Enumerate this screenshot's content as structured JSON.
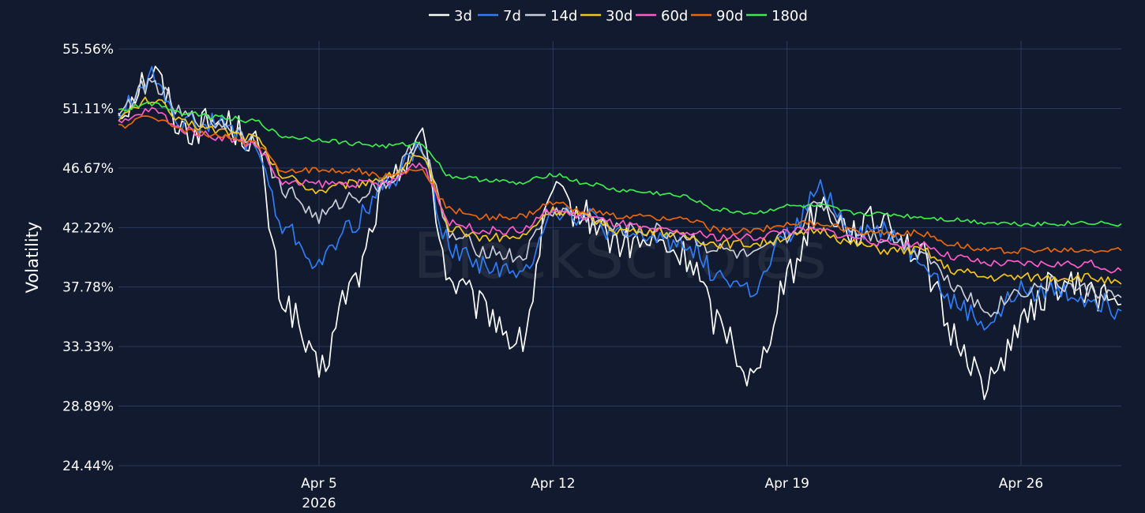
{
  "chart_data": {
    "type": "line",
    "watermark": "BlockScholes",
    "ylabel": "Volatility",
    "ylim": [
      24.44,
      55.56
    ],
    "yticks": [
      "55.56%",
      "51.11%",
      "46.67%",
      "42.22%",
      "37.78%",
      "33.33%",
      "28.89%",
      "24.44%"
    ],
    "ytick_values": [
      55.56,
      51.11,
      46.67,
      42.22,
      37.78,
      33.33,
      28.89,
      24.44
    ],
    "x_range": [
      "2026-03-30",
      "2026-04-29"
    ],
    "xticks": [
      {
        "date": "2026-04-05",
        "label": "Apr 5",
        "sublabel": "2026"
      },
      {
        "date": "2026-04-12",
        "label": "Apr 12",
        "sublabel": ""
      },
      {
        "date": "2026-04-19",
        "label": "Apr 19",
        "sublabel": ""
      },
      {
        "date": "2026-04-26",
        "label": "Apr 26",
        "sublabel": ""
      }
    ],
    "grid": true,
    "legend": "top-center",
    "series": [
      {
        "name": "3d",
        "color": "#ffffff",
        "x": [
          "2026-03-30",
          "2026-03-31",
          "2026-04-01",
          "2026-04-02",
          "2026-04-03",
          "2026-04-04",
          "2026-04-05",
          "2026-04-06",
          "2026-04-07",
          "2026-04-08",
          "2026-04-09",
          "2026-04-10",
          "2026-04-11",
          "2026-04-12",
          "2026-04-13",
          "2026-04-14",
          "2026-04-15",
          "2026-04-16",
          "2026-04-17",
          "2026-04-18",
          "2026-04-19",
          "2026-04-20",
          "2026-04-21",
          "2026-04-22",
          "2026-04-23",
          "2026-04-24",
          "2026-04-25",
          "2026-04-26",
          "2026-04-27",
          "2026-04-28",
          "2026-04-29"
        ],
        "values": [
          51.0,
          53.8,
          49.5,
          50.2,
          49.0,
          36.5,
          31.5,
          38.0,
          45.0,
          49.0,
          38.0,
          36.0,
          33.5,
          44.5,
          43.0,
          41.0,
          41.0,
          40.0,
          35.0,
          31.0,
          38.5,
          44.0,
          42.0,
          43.0,
          40.0,
          34.0,
          30.5,
          35.0,
          38.0,
          37.5,
          36.5
        ]
      },
      {
        "name": "7d",
        "color": "#2f7cf6",
        "x": [
          "2026-03-30",
          "2026-03-31",
          "2026-04-01",
          "2026-04-02",
          "2026-04-03",
          "2026-04-04",
          "2026-04-05",
          "2026-04-06",
          "2026-04-07",
          "2026-04-08",
          "2026-04-09",
          "2026-04-10",
          "2026-04-11",
          "2026-04-12",
          "2026-04-13",
          "2026-04-14",
          "2026-04-15",
          "2026-04-16",
          "2026-04-17",
          "2026-04-18",
          "2026-04-19",
          "2026-04-20",
          "2026-04-21",
          "2026-04-22",
          "2026-04-23",
          "2026-04-24",
          "2026-04-25",
          "2026-04-26",
          "2026-04-27",
          "2026-04-28",
          "2026-04-29"
        ],
        "values": [
          50.8,
          53.5,
          50.0,
          50.0,
          48.5,
          42.0,
          39.5,
          42.5,
          45.5,
          48.0,
          40.5,
          39.5,
          38.5,
          43.5,
          43.0,
          41.5,
          41.5,
          41.0,
          38.5,
          37.5,
          41.5,
          45.0,
          42.0,
          42.0,
          40.0,
          36.5,
          35.0,
          37.5,
          37.5,
          37.0,
          36.0
        ]
      },
      {
        "name": "14d",
        "color": "#c8ccd6",
        "x": [
          "2026-03-30",
          "2026-03-31",
          "2026-04-01",
          "2026-04-02",
          "2026-04-03",
          "2026-04-04",
          "2026-04-05",
          "2026-04-06",
          "2026-04-07",
          "2026-04-08",
          "2026-04-09",
          "2026-04-10",
          "2026-04-11",
          "2026-04-12",
          "2026-04-13",
          "2026-04-14",
          "2026-04-15",
          "2026-04-16",
          "2026-04-17",
          "2026-04-18",
          "2026-04-19",
          "2026-04-20",
          "2026-04-21",
          "2026-04-22",
          "2026-04-23",
          "2026-04-24",
          "2026-04-25",
          "2026-04-26",
          "2026-04-27",
          "2026-04-28",
          "2026-04-29"
        ],
        "values": [
          51.0,
          53.0,
          50.5,
          50.0,
          49.0,
          45.0,
          43.0,
          44.5,
          45.5,
          48.5,
          41.5,
          40.5,
          40.0,
          43.5,
          43.0,
          42.0,
          42.0,
          41.5,
          40.5,
          40.0,
          41.5,
          44.0,
          42.0,
          41.5,
          40.5,
          38.0,
          36.0,
          37.5,
          38.0,
          37.5,
          37.0
        ]
      },
      {
        "name": "30d",
        "color": "#f5c518",
        "x": [
          "2026-03-30",
          "2026-03-31",
          "2026-04-01",
          "2026-04-02",
          "2026-04-03",
          "2026-04-04",
          "2026-04-05",
          "2026-04-06",
          "2026-04-07",
          "2026-04-08",
          "2026-04-09",
          "2026-04-10",
          "2026-04-11",
          "2026-04-12",
          "2026-04-13",
          "2026-04-14",
          "2026-04-15",
          "2026-04-16",
          "2026-04-17",
          "2026-04-18",
          "2026-04-19",
          "2026-04-20",
          "2026-04-21",
          "2026-04-22",
          "2026-04-23",
          "2026-04-24",
          "2026-04-25",
          "2026-04-26",
          "2026-04-27",
          "2026-04-28",
          "2026-04-29"
        ],
        "values": [
          50.5,
          51.8,
          50.0,
          49.5,
          49.0,
          46.0,
          45.0,
          45.5,
          46.0,
          47.5,
          42.0,
          41.5,
          41.5,
          43.5,
          43.0,
          42.0,
          42.0,
          41.5,
          41.0,
          41.0,
          41.5,
          42.0,
          41.0,
          40.5,
          40.5,
          39.0,
          38.5,
          38.5,
          38.5,
          38.5,
          38.0
        ]
      },
      {
        "name": "60d",
        "color": "#ff5cc8",
        "x": [
          "2026-03-30",
          "2026-03-31",
          "2026-04-01",
          "2026-04-02",
          "2026-04-03",
          "2026-04-04",
          "2026-04-05",
          "2026-04-06",
          "2026-04-07",
          "2026-04-08",
          "2026-04-09",
          "2026-04-10",
          "2026-04-11",
          "2026-04-12",
          "2026-04-13",
          "2026-04-14",
          "2026-04-15",
          "2026-04-16",
          "2026-04-17",
          "2026-04-18",
          "2026-04-19",
          "2026-04-20",
          "2026-04-21",
          "2026-04-22",
          "2026-04-23",
          "2026-04-24",
          "2026-04-25",
          "2026-04-26",
          "2026-04-27",
          "2026-04-28",
          "2026-04-29"
        ],
        "values": [
          50.0,
          51.0,
          49.5,
          49.0,
          48.5,
          45.5,
          45.5,
          45.5,
          45.5,
          47.0,
          42.5,
          42.0,
          42.0,
          43.5,
          43.0,
          42.5,
          42.0,
          41.8,
          41.5,
          41.5,
          42.0,
          42.0,
          41.5,
          41.0,
          41.0,
          40.0,
          39.5,
          39.5,
          39.5,
          39.5,
          39.0
        ]
      },
      {
        "name": "90d",
        "color": "#e8660c",
        "x": [
          "2026-03-30",
          "2026-03-31",
          "2026-04-01",
          "2026-04-02",
          "2026-04-03",
          "2026-04-04",
          "2026-04-05",
          "2026-04-06",
          "2026-04-07",
          "2026-04-08",
          "2026-04-09",
          "2026-04-10",
          "2026-04-11",
          "2026-04-12",
          "2026-04-13",
          "2026-04-14",
          "2026-04-15",
          "2026-04-16",
          "2026-04-17",
          "2026-04-18",
          "2026-04-19",
          "2026-04-20",
          "2026-04-21",
          "2026-04-22",
          "2026-04-23",
          "2026-04-24",
          "2026-04-25",
          "2026-04-26",
          "2026-04-27",
          "2026-04-28",
          "2026-04-29"
        ],
        "values": [
          49.8,
          50.5,
          49.5,
          49.0,
          48.5,
          46.5,
          46.5,
          46.5,
          46.0,
          46.5,
          43.5,
          43.0,
          43.0,
          44.0,
          43.5,
          43.0,
          43.0,
          42.8,
          42.0,
          42.0,
          42.5,
          42.5,
          42.0,
          41.8,
          41.8,
          41.0,
          40.5,
          40.5,
          40.5,
          40.5,
          40.5
        ]
      },
      {
        "name": "180d",
        "color": "#3ee84f",
        "x": [
          "2026-03-30",
          "2026-03-31",
          "2026-04-01",
          "2026-04-02",
          "2026-04-03",
          "2026-04-04",
          "2026-04-05",
          "2026-04-06",
          "2026-04-07",
          "2026-04-08",
          "2026-04-09",
          "2026-04-10",
          "2026-04-11",
          "2026-04-12",
          "2026-04-13",
          "2026-04-14",
          "2026-04-15",
          "2026-04-16",
          "2026-04-17",
          "2026-04-18",
          "2026-04-19",
          "2026-04-20",
          "2026-04-21",
          "2026-04-22",
          "2026-04-23",
          "2026-04-24",
          "2026-04-25",
          "2026-04-26",
          "2026-04-27",
          "2026-04-28",
          "2026-04-29"
        ],
        "values": [
          51.0,
          51.5,
          50.8,
          50.5,
          50.2,
          49.0,
          48.8,
          48.5,
          48.3,
          48.5,
          46.0,
          45.8,
          45.5,
          46.2,
          45.5,
          45.0,
          44.8,
          44.5,
          43.5,
          43.3,
          43.8,
          43.8,
          43.3,
          43.2,
          43.0,
          42.8,
          42.6,
          42.5,
          42.5,
          42.6,
          42.5
        ]
      }
    ]
  }
}
